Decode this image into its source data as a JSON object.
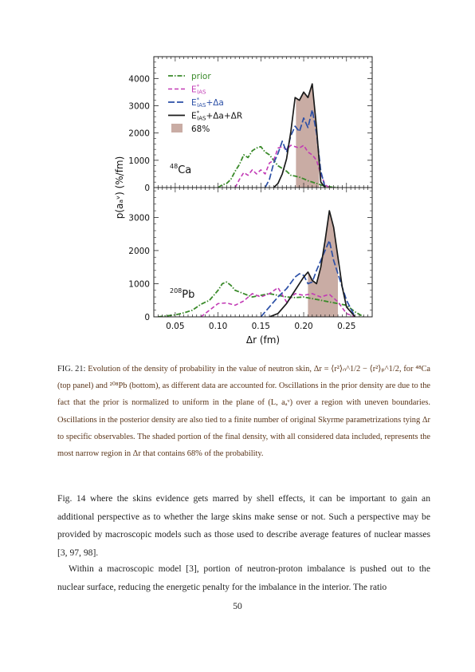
{
  "chart_data": [
    {
      "type": "line",
      "panel": "top",
      "nucleus_label": "48Ca",
      "ylabel": "p(aₐᵛ) (%/fm)",
      "xlim": [
        0.025,
        0.28
      ],
      "ylim": [
        0,
        4800
      ],
      "yticks": [
        0,
        1000,
        2000,
        3000,
        4000
      ],
      "legend": {
        "placement": "top-left",
        "entries": [
          {
            "label": "prior",
            "style": "dash-dot",
            "color": "#3a8a2a"
          },
          {
            "label": "E*IAS",
            "style": "dashed",
            "color": "#c23ab5"
          },
          {
            "label": "E*IAS+Δa",
            "style": "long-dash",
            "color": "#2b4fa6"
          },
          {
            "label": "E*IAS+Δa+ΔR",
            "style": "solid",
            "color": "#1a1a1a"
          },
          {
            "label": "68%",
            "style": "fill",
            "color": "#c9aca4"
          }
        ]
      },
      "series": [
        {
          "name": "prior",
          "x": [
            0.1,
            0.105,
            0.11,
            0.115,
            0.12,
            0.125,
            0.13,
            0.135,
            0.14,
            0.145,
            0.15,
            0.155,
            0.16,
            0.165,
            0.17,
            0.175,
            0.18,
            0.185,
            0.19,
            0.195,
            0.2,
            0.205,
            0.21,
            0.215,
            0.22,
            0.225,
            0.23,
            0.235,
            0.24
          ],
          "y": [
            0,
            100,
            150,
            300,
            600,
            850,
            1200,
            1100,
            1350,
            1450,
            1500,
            1300,
            1200,
            1000,
            800,
            700,
            600,
            450,
            420,
            380,
            320,
            250,
            200,
            150,
            100,
            50,
            30,
            10,
            0
          ]
        },
        {
          "name": "E*IAS",
          "x": [
            0.12,
            0.125,
            0.13,
            0.135,
            0.14,
            0.145,
            0.15,
            0.155,
            0.16,
            0.165,
            0.17,
            0.175,
            0.18,
            0.185,
            0.19,
            0.195,
            0.2,
            0.205,
            0.21,
            0.215,
            0.22,
            0.225,
            0.23
          ],
          "y": [
            0,
            300,
            550,
            450,
            650,
            500,
            650,
            500,
            900,
            1000,
            1450,
            1500,
            1400,
            1550,
            1500,
            1450,
            1550,
            1300,
            1200,
            1000,
            500,
            100,
            0
          ]
        },
        {
          "name": "E*IAS+Δa",
          "x": [
            0.155,
            0.16,
            0.165,
            0.17,
            0.175,
            0.18,
            0.185,
            0.19,
            0.195,
            0.2,
            0.205,
            0.21,
            0.215,
            0.22,
            0.225
          ],
          "y": [
            0,
            300,
            900,
            1250,
            1700,
            1300,
            1900,
            2250,
            2050,
            2550,
            2200,
            2850,
            2000,
            600,
            0
          ]
        },
        {
          "name": "E*IAS+Δa+ΔR",
          "x": [
            0.165,
            0.17,
            0.175,
            0.18,
            0.185,
            0.19,
            0.195,
            0.2,
            0.205,
            0.21,
            0.215,
            0.22,
            0.225
          ],
          "y": [
            0,
            150,
            500,
            1050,
            2050,
            3300,
            3200,
            3500,
            3300,
            3800,
            2200,
            200,
            0
          ]
        }
      ],
      "band_68": {
        "x": [
          0.191,
          0.218
        ],
        "curve": "E*IAS+Δa+ΔR"
      }
    },
    {
      "type": "line",
      "panel": "bottom",
      "nucleus_label": "208Pb",
      "xlabel": "Δr (fm)",
      "xlim": [
        0.025,
        0.28
      ],
      "ylim": [
        0,
        3900
      ],
      "xticks": [
        "0.05",
        "0.10",
        "0.15",
        "0.20",
        "0.25"
      ],
      "xtick_values": [
        0.05,
        0.1,
        0.15,
        0.2,
        0.25
      ],
      "yticks": [
        0,
        1000,
        2000,
        3000
      ],
      "series": [
        {
          "name": "prior",
          "x": [
            0.03,
            0.04,
            0.05,
            0.06,
            0.07,
            0.08,
            0.09,
            0.1,
            0.105,
            0.11,
            0.115,
            0.12,
            0.13,
            0.14,
            0.15,
            0.16,
            0.17,
            0.18,
            0.19,
            0.2,
            0.21,
            0.22,
            0.23,
            0.24,
            0.25,
            0.26,
            0.27
          ],
          "y": [
            0,
            30,
            60,
            120,
            200,
            380,
            500,
            800,
            1000,
            1050,
            950,
            800,
            700,
            600,
            650,
            700,
            650,
            600,
            580,
            600,
            550,
            500,
            450,
            400,
            350,
            150,
            0
          ]
        },
        {
          "name": "E*IAS",
          "x": [
            0.08,
            0.09,
            0.1,
            0.11,
            0.12,
            0.13,
            0.14,
            0.15,
            0.16,
            0.17,
            0.18,
            0.19,
            0.2,
            0.21,
            0.22,
            0.23,
            0.24,
            0.25,
            0.26
          ],
          "y": [
            0,
            200,
            400,
            420,
            350,
            480,
            700,
            600,
            700,
            880,
            450,
            700,
            650,
            700,
            600,
            680,
            450,
            100,
            0
          ]
        },
        {
          "name": "E*IAS+Δa",
          "x": [
            0.15,
            0.16,
            0.17,
            0.18,
            0.19,
            0.195,
            0.2,
            0.205,
            0.21,
            0.215,
            0.22,
            0.225,
            0.23,
            0.235,
            0.24,
            0.245,
            0.25,
            0.26
          ],
          "y": [
            0,
            300,
            600,
            850,
            1200,
            1300,
            1250,
            1000,
            1050,
            1400,
            1700,
            2000,
            2300,
            1700,
            1300,
            900,
            500,
            0
          ]
        },
        {
          "name": "E*IAS+Δa+ΔR",
          "x": [
            0.16,
            0.17,
            0.18,
            0.19,
            0.195,
            0.2,
            0.205,
            0.21,
            0.215,
            0.22,
            0.225,
            0.23,
            0.235,
            0.24,
            0.245,
            0.25,
            0.26
          ],
          "y": [
            0,
            100,
            400,
            800,
            1000,
            1200,
            1350,
            1100,
            1000,
            1500,
            2300,
            3200,
            2700,
            1800,
            900,
            300,
            0
          ]
        }
      ],
      "band_68": {
        "x": [
          0.205,
          0.24
        ],
        "curve": "E*IAS+Δa+ΔR"
      }
    }
  ],
  "caption": {
    "label": "FIG. 21:",
    "text": "Evolution of the density of probability in the value of neutron skin, Δr = ⟨r²⟩ₙ^1/2 − ⟨r²⟩ₚ^1/2, for ⁴⁸Ca (top panel) and ²⁰⁸Pb (bottom), as different data are accounted for. Oscillations in the prior density are due to the fact that the prior is normalized to uniform in the plane of (L, aₐᵛ) over a region with uneven boundaries. Oscillations in the posterior density are also tied to a finite number of original Skyrme parametrizations tying Δr to specific observables. The shaded portion of the final density, with all considered data included, represents the most narrow region in Δr that contains 68% of the probability."
  },
  "body": {
    "para1": "Fig. 14 where the skins evidence gets marred by shell effects, it can be important to gain an additional perspective as to whether the large skins make sense or not. Such a perspective may be provided by macroscopic models such as those used to describe average features of nuclear masses [3, 97, 98].",
    "para2": "Within a macroscopic model [3], portion of neutron-proton imbalance is pushed out to the nuclear surface, reducing the energetic penalty for the imbalance in the interior. The ratio"
  },
  "page_number": "50"
}
